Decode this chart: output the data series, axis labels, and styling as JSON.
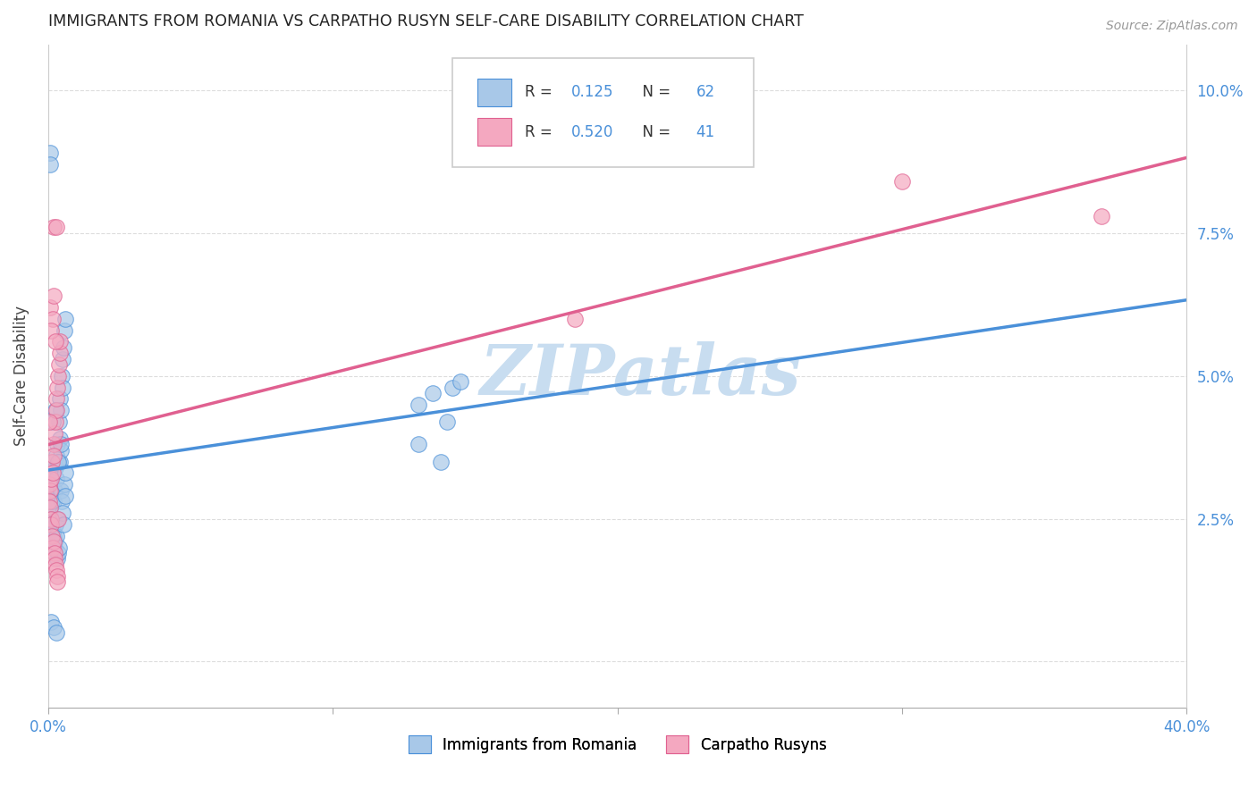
{
  "title": "IMMIGRANTS FROM ROMANIA VS CARPATHO RUSYN SELF-CARE DISABILITY CORRELATION CHART",
  "source": "Source: ZipAtlas.com",
  "ylabel": "Self-Care Disability",
  "x_min": 0.0,
  "x_max": 0.4,
  "y_min": -0.008,
  "y_max": 0.108,
  "legend_label1": "Immigrants from Romania",
  "legend_label2": "Carpatho Rusyns",
  "color_blue": "#a8c8e8",
  "color_pink": "#f4a8c0",
  "line_blue": "#4a90d9",
  "line_pink": "#e06090",
  "watermark": "ZIPatlas",
  "watermark_color": "#c8ddf0",
  "blue_x": [
    0.0008,
    0.001,
    0.0012,
    0.0015,
    0.0018,
    0.002,
    0.0022,
    0.0025,
    0.0028,
    0.003,
    0.0032,
    0.0035,
    0.0038,
    0.004,
    0.0042,
    0.0045,
    0.0048,
    0.005,
    0.0052,
    0.0055,
    0.0058,
    0.006,
    0.0005,
    0.0007,
    0.0009,
    0.0011,
    0.0013,
    0.0016,
    0.0019,
    0.0021,
    0.0023,
    0.0026,
    0.0029,
    0.0031,
    0.0033,
    0.0036,
    0.0039,
    0.0041,
    0.0043,
    0.0046,
    0.0049,
    0.0051,
    0.0053,
    0.0056,
    0.0059,
    0.0061,
    0.0015,
    0.0025,
    0.0035,
    0.0045,
    0.0006,
    0.0008,
    0.001,
    0.002,
    0.003,
    0.13,
    0.135,
    0.14,
    0.142,
    0.145,
    0.13,
    0.138
  ],
  "blue_y": [
    0.032,
    0.031,
    0.029,
    0.033,
    0.028,
    0.035,
    0.03,
    0.034,
    0.036,
    0.032,
    0.038,
    0.035,
    0.042,
    0.039,
    0.046,
    0.044,
    0.05,
    0.048,
    0.053,
    0.055,
    0.058,
    0.06,
    0.026,
    0.027,
    0.025,
    0.024,
    0.028,
    0.023,
    0.022,
    0.021,
    0.02,
    0.024,
    0.022,
    0.025,
    0.018,
    0.019,
    0.02,
    0.035,
    0.037,
    0.03,
    0.028,
    0.026,
    0.024,
    0.031,
    0.029,
    0.033,
    0.042,
    0.044,
    0.035,
    0.038,
    0.089,
    0.087,
    0.007,
    0.006,
    0.005,
    0.045,
    0.047,
    0.042,
    0.048,
    0.049,
    0.038,
    0.035
  ],
  "pink_x": [
    0.0005,
    0.0008,
    0.001,
    0.0012,
    0.0015,
    0.0018,
    0.002,
    0.0022,
    0.0025,
    0.0028,
    0.003,
    0.0032,
    0.0035,
    0.0038,
    0.004,
    0.0042,
    0.0005,
    0.0007,
    0.0009,
    0.0011,
    0.0013,
    0.0016,
    0.0019,
    0.0021,
    0.0023,
    0.0026,
    0.0029,
    0.0031,
    0.0033,
    0.0036,
    0.0008,
    0.0015,
    0.002,
    0.001,
    0.0025,
    0.0005,
    0.0018,
    0.003,
    0.3,
    0.37,
    0.185
  ],
  "pink_y": [
    0.031,
    0.03,
    0.032,
    0.035,
    0.033,
    0.038,
    0.036,
    0.04,
    0.042,
    0.044,
    0.046,
    0.048,
    0.05,
    0.052,
    0.054,
    0.056,
    0.028,
    0.027,
    0.025,
    0.024,
    0.022,
    0.02,
    0.021,
    0.019,
    0.018,
    0.017,
    0.016,
    0.015,
    0.014,
    0.025,
    0.062,
    0.06,
    0.064,
    0.058,
    0.056,
    0.042,
    0.076,
    0.076,
    0.084,
    0.078,
    0.06
  ]
}
